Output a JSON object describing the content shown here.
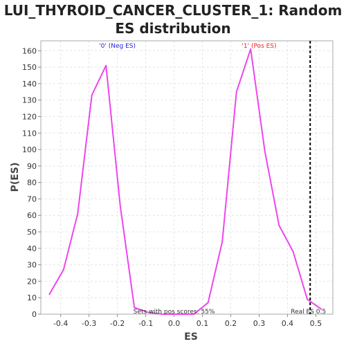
{
  "chart_data": {
    "type": "line",
    "title_line1": "LUI_THYROID_CANCER_CLUSTER_1: Random",
    "title_line2": "ES distribution",
    "xlabel": "ES",
    "ylabel": "P(ES)",
    "xlim": [
      -0.47,
      0.56
    ],
    "ylim": [
      0,
      166
    ],
    "x_ticks": [
      -0.4,
      -0.3,
      -0.2,
      -0.1,
      0.0,
      0.1,
      0.2,
      0.3,
      0.4,
      0.5
    ],
    "x_tick_labels": [
      "-0.4",
      "-0.3",
      "-0.2",
      "-0.1",
      "0.0",
      "0.1",
      "0.2",
      "0.3",
      "0.4",
      "0.5"
    ],
    "y_ticks": [
      0,
      10,
      20,
      30,
      40,
      50,
      60,
      70,
      80,
      90,
      100,
      110,
      120,
      130,
      140,
      150,
      160
    ],
    "grid": true,
    "series": [
      {
        "color": "#ee44ee",
        "points": [
          [
            -0.44,
            12
          ],
          [
            -0.39,
            27
          ],
          [
            -0.34,
            61
          ],
          [
            -0.29,
            133
          ],
          [
            -0.24,
            151
          ],
          [
            -0.19,
            66
          ],
          [
            -0.14,
            4
          ],
          [
            -0.09,
            1
          ],
          [
            -0.04,
            0
          ],
          [
            0.01,
            0
          ],
          [
            0.07,
            0
          ],
          [
            0.12,
            7
          ],
          [
            0.17,
            44
          ],
          [
            0.22,
            135
          ],
          [
            0.27,
            161
          ],
          [
            0.32,
            99
          ],
          [
            0.37,
            54
          ],
          [
            0.42,
            38
          ],
          [
            0.47,
            9
          ],
          [
            0.52,
            3
          ]
        ]
      }
    ],
    "real_es": {
      "value": 0.48,
      "label": "Real ES 0.5",
      "color": "#000000"
    },
    "annotations": [
      {
        "text": "'0' (Neg ES)",
        "color": "#2222dd",
        "x": -0.2
      },
      {
        "text": "'1' (Pos ES)",
        "color": "#ee2222",
        "x": 0.3
      },
      {
        "text": "Sets with pos scores: 55%",
        "color": "#333333",
        "x": 0.0
      }
    ]
  }
}
